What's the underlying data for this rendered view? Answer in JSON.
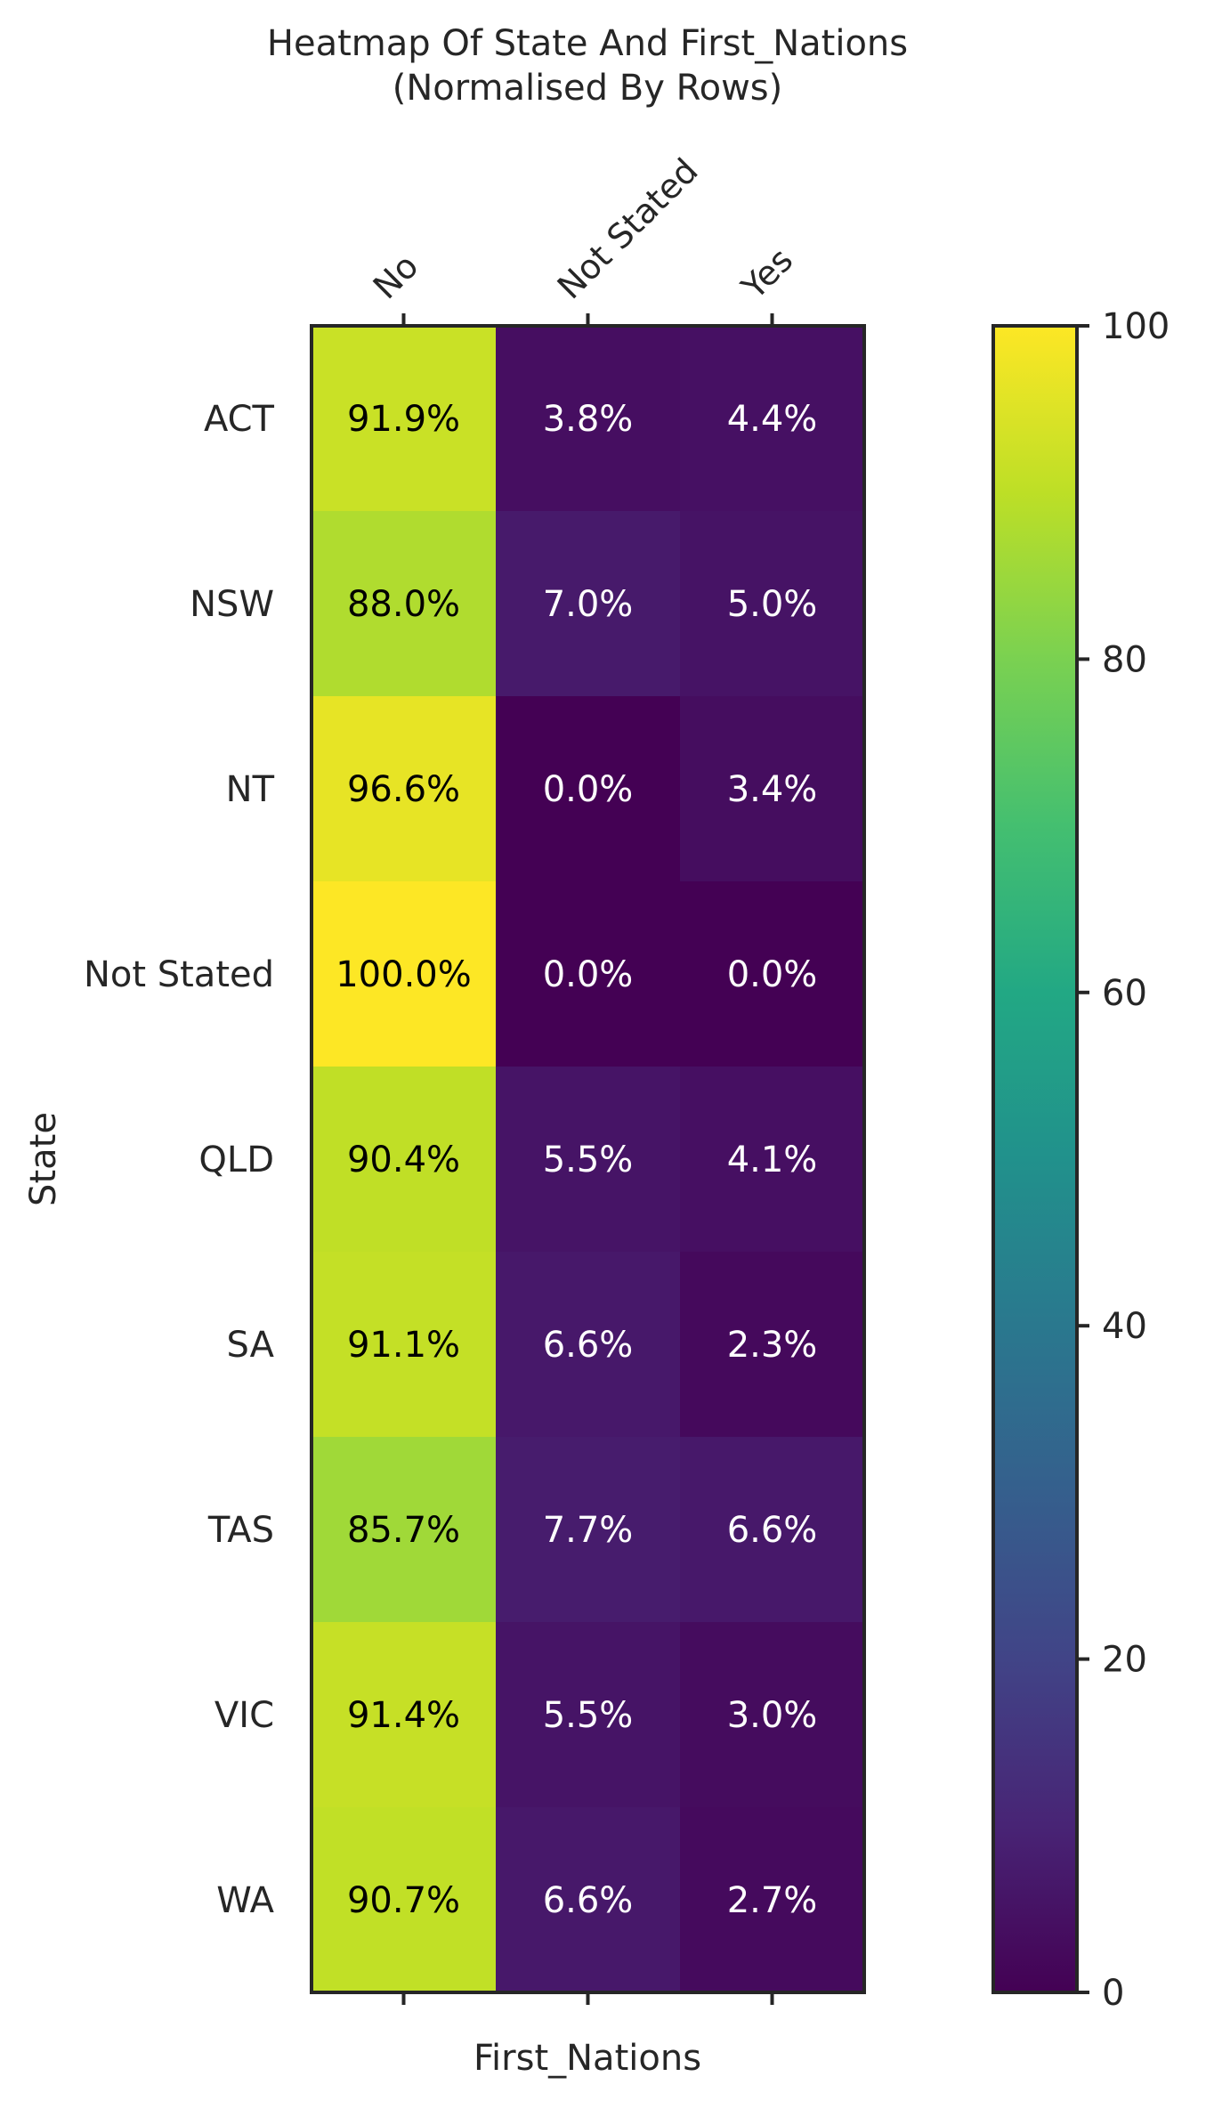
{
  "chart_data": {
    "type": "heatmap",
    "title": "Heatmap Of State And First_Nations",
    "subtitle": "(Normalised By Rows)",
    "xlabel": "First_Nations",
    "ylabel": "State",
    "columns": [
      "No",
      "Not Stated",
      "Yes"
    ],
    "rows": [
      "ACT",
      "NSW",
      "NT",
      "Not Stated",
      "QLD",
      "SA",
      "TAS",
      "VIC",
      "WA"
    ],
    "values": [
      [
        91.9,
        3.8,
        4.4
      ],
      [
        88.0,
        7.0,
        5.0
      ],
      [
        96.6,
        0.0,
        3.4
      ],
      [
        100.0,
        0.0,
        0.0
      ],
      [
        90.4,
        5.5,
        4.1
      ],
      [
        91.1,
        6.6,
        2.3
      ],
      [
        85.7,
        7.7,
        6.6
      ],
      [
        91.4,
        5.5,
        3.0
      ],
      [
        90.7,
        6.6,
        2.7
      ]
    ],
    "value_format": "percent_1dp",
    "colormap": "viridis",
    "colorbar": {
      "range": [
        0,
        100
      ],
      "ticks": [
        0,
        20,
        40,
        60,
        80,
        100
      ]
    },
    "x_tick_position": "top",
    "grid": false
  }
}
